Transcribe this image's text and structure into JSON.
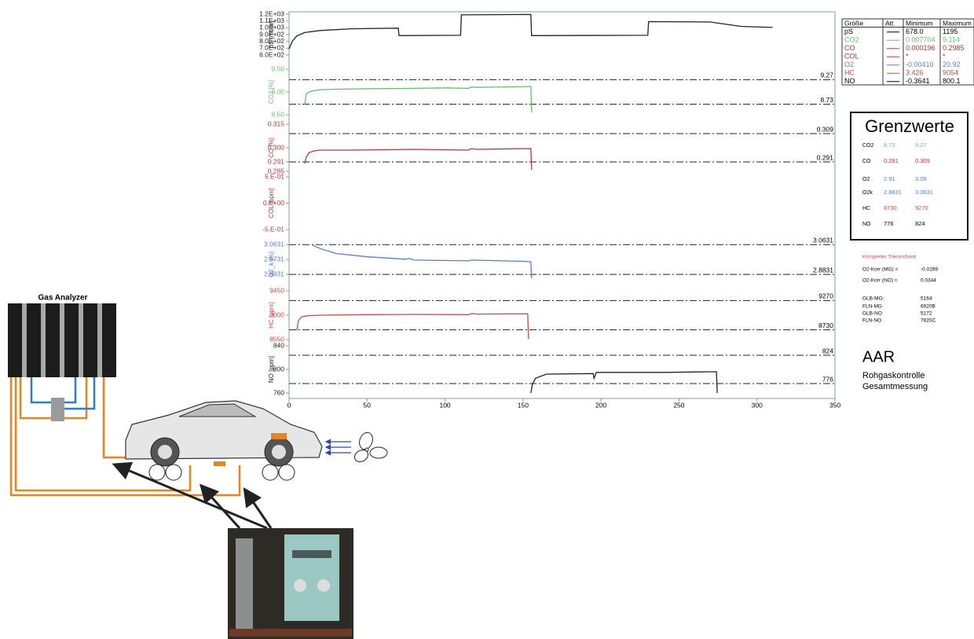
{
  "diagram": {
    "analyzer_label": "Gas Analyzer"
  },
  "chart_data": [
    {
      "type": "line",
      "y_label": "pS [mbar]",
      "ylim": [
        600,
        1200
      ],
      "yticks": [
        {
          "value": 1200,
          "label": "1.2E+03"
        },
        {
          "value": 1100,
          "label": "1.1E+03"
        },
        {
          "value": 1000,
          "label": "1.0E+03"
        },
        {
          "value": 900,
          "label": "9.0E+02"
        },
        {
          "value": 800,
          "label": "8.0E+02"
        },
        {
          "value": 700,
          "label": "7.0E+02"
        },
        {
          "value": 600,
          "label": "6.0E+02"
        }
      ],
      "series": [
        {
          "color": "#222222",
          "x": [
            0,
            2,
            5,
            10,
            20,
            40,
            70,
            70.5,
            110,
            110.5,
            155,
            155.5,
            230,
            230.5,
            270,
            290,
            310
          ],
          "values": [
            690,
            800,
            880,
            930,
            960,
            985,
            995,
            885,
            890,
            1190,
            1195,
            885,
            890,
            1090,
            1085,
            1020,
            1005
          ]
        }
      ]
    },
    {
      "type": "line",
      "y_label": "CO2 [%]",
      "ylim": [
        8.5,
        9.5
      ],
      "yticks": [
        {
          "value": 9.5,
          "label": "9.50"
        },
        {
          "value": 9,
          "label": "9.00"
        },
        {
          "value": 8.5,
          "label": "8.50"
        }
      ],
      "limits": [
        9.27,
        8.73
      ],
      "series": [
        {
          "color": "#6dbb73",
          "x": [
            10,
            11,
            13,
            16,
            20,
            30,
            50,
            80,
            100,
            115,
            117,
            120,
            140,
            155,
            155.5
          ],
          "values": [
            8.72,
            8.95,
            9.0,
            9.03,
            9.05,
            9.06,
            9.07,
            9.08,
            9.09,
            9.08,
            9.11,
            9.1,
            9.11,
            9.12,
            8.55
          ]
        }
      ]
    },
    {
      "type": "line",
      "y_label": "CO [%]",
      "ylim": [
        0.285,
        0.315
      ],
      "yticks": [
        0.315,
        {
          "value": 0.3,
          "label": "0.300"
        },
        0.291,
        0.285
      ],
      "limits": [
        0.309,
        0.291
      ],
      "series": [
        {
          "color": "#b03a3a",
          "x": [
            10,
            11,
            13,
            16,
            20,
            40,
            80,
            115,
            117,
            120,
            155,
            155.5
          ],
          "values": [
            0.29,
            0.294,
            0.297,
            0.298,
            0.2985,
            0.2985,
            0.299,
            0.2985,
            0.2995,
            0.299,
            0.2995,
            0.286
          ]
        }
      ]
    },
    {
      "type": "line",
      "y_label": "COL [ppm]",
      "ylim": [
        -0.5,
        0.5
      ],
      "yticks": [
        {
          "value": 0.5,
          "label": "5.E-01"
        },
        {
          "value": 0,
          "label": "0.E+00"
        },
        {
          "value": -0.5,
          "label": "-5.E-01"
        }
      ],
      "series": []
    },
    {
      "type": "line",
      "y_label": "O2_k [%]",
      "ylim": [
        2.7931,
        3.0931
      ],
      "yticks": [
        3.0631,
        2.9731,
        2.8831
      ],
      "limits": [
        3.0631,
        2.8831
      ],
      "series": [
        {
          "color": "#5a7fc0",
          "x": [
            15,
            20,
            30,
            50,
            75,
            77,
            80,
            115,
            117,
            150,
            155,
            155.5
          ],
          "values": [
            3.06,
            3.04,
            3.01,
            2.99,
            2.975,
            2.98,
            2.97,
            2.965,
            2.97,
            2.962,
            2.96,
            2.86
          ]
        }
      ]
    },
    {
      "type": "line",
      "y_label": "HC [ppm]",
      "ylim": [
        8550,
        9450
      ],
      "yticks": [
        9450,
        9000,
        8550
      ],
      "limits": [
        9270,
        8730
      ],
      "series": [
        {
          "color": "#c0504d",
          "x": [
            5,
            6,
            8,
            12,
            20,
            50,
            80,
            115,
            117,
            120,
            150,
            153,
            153.5
          ],
          "values": [
            8720,
            8900,
            8970,
            8990,
            9000,
            9010,
            9015,
            9010,
            9030,
            9020,
            9025,
            9025,
            8560
          ]
        }
      ]
    },
    {
      "type": "line",
      "y_label": "NO [ppm]",
      "ylim": [
        760,
        840
      ],
      "yticks": [
        840,
        800,
        760
      ],
      "limits": [
        824,
        776
      ],
      "xlim": [
        0,
        350
      ],
      "xticks": [
        0,
        50,
        100,
        150,
        200,
        250,
        300,
        350
      ],
      "series": [
        {
          "color": "#222222",
          "x": [
            155,
            156,
            158,
            165,
            195,
            195.5,
            197,
            240,
            270,
            274,
            274.5
          ],
          "values": [
            760,
            775,
            785,
            792,
            793,
            785,
            795,
            795,
            796,
            796,
            760
          ]
        }
      ]
    }
  ],
  "table": {
    "header": [
      "Größe",
      "Att",
      "Minimum",
      "Maximum"
    ],
    "rows": [
      {
        "name": "pS",
        "min": "678.0",
        "max": "1195",
        "color": "#000000"
      },
      {
        "name": "CO2",
        "min": "0.007704",
        "max": "9.114",
        "color": "#6dbb73"
      },
      {
        "name": "CO",
        "min": "0.000196",
        "max": "0.2985",
        "color": "#b03a3a"
      },
      {
        "name": "COL",
        "min": "*",
        "max": "*",
        "color": "#b03a3a"
      },
      {
        "name": "O2",
        "min": "-0.00410",
        "max": "20.92",
        "color": "#5a7fc0"
      },
      {
        "name": "HC",
        "min": "3.426",
        "max": "9054",
        "color": "#c0504d"
      },
      {
        "name": "NO",
        "min": "-0.3641",
        "max": "800.1",
        "color": "#000000"
      }
    ]
  },
  "limits_box": {
    "title": "Grenzwerte",
    "rows": [
      {
        "name": "CO2",
        "low": "8.73",
        "high": "9.27",
        "color": "#6dbb73"
      },
      {
        "name": "CO",
        "low": "0.291",
        "high": "0.309",
        "color": "#b03a3a"
      },
      {
        "name": "O2",
        "low": "2.91",
        "high": "3.09",
        "color": "#5a7fc0"
      },
      {
        "name": "O2k",
        "low": "2.8831",
        "high": "3.0631",
        "color": "#5a7fc0"
      },
      {
        "name": "HC",
        "low": "8730",
        "high": "9270",
        "color": "#c0504d"
      },
      {
        "name": "NO",
        "low": "776",
        "high": "824",
        "color": "#000000"
      }
    ]
  },
  "notes": {
    "band_title": "Korrigiertes Toleranzband",
    "corrections": [
      [
        "O2-Korr (MG) =",
        "-0.0269"
      ],
      [
        "O2-Korr (NO) =",
        "0.0344"
      ]
    ],
    "ids": [
      [
        "GLB-MG:",
        "5164"
      ],
      [
        "FLN-MG",
        "6920B"
      ],
      [
        "GLB-NO",
        "5172"
      ],
      [
        "FLN-NO",
        "7820C"
      ]
    ],
    "title": "AAR",
    "lines": [
      "Rohgaskontrolle",
      "Gesamtmessung"
    ]
  }
}
